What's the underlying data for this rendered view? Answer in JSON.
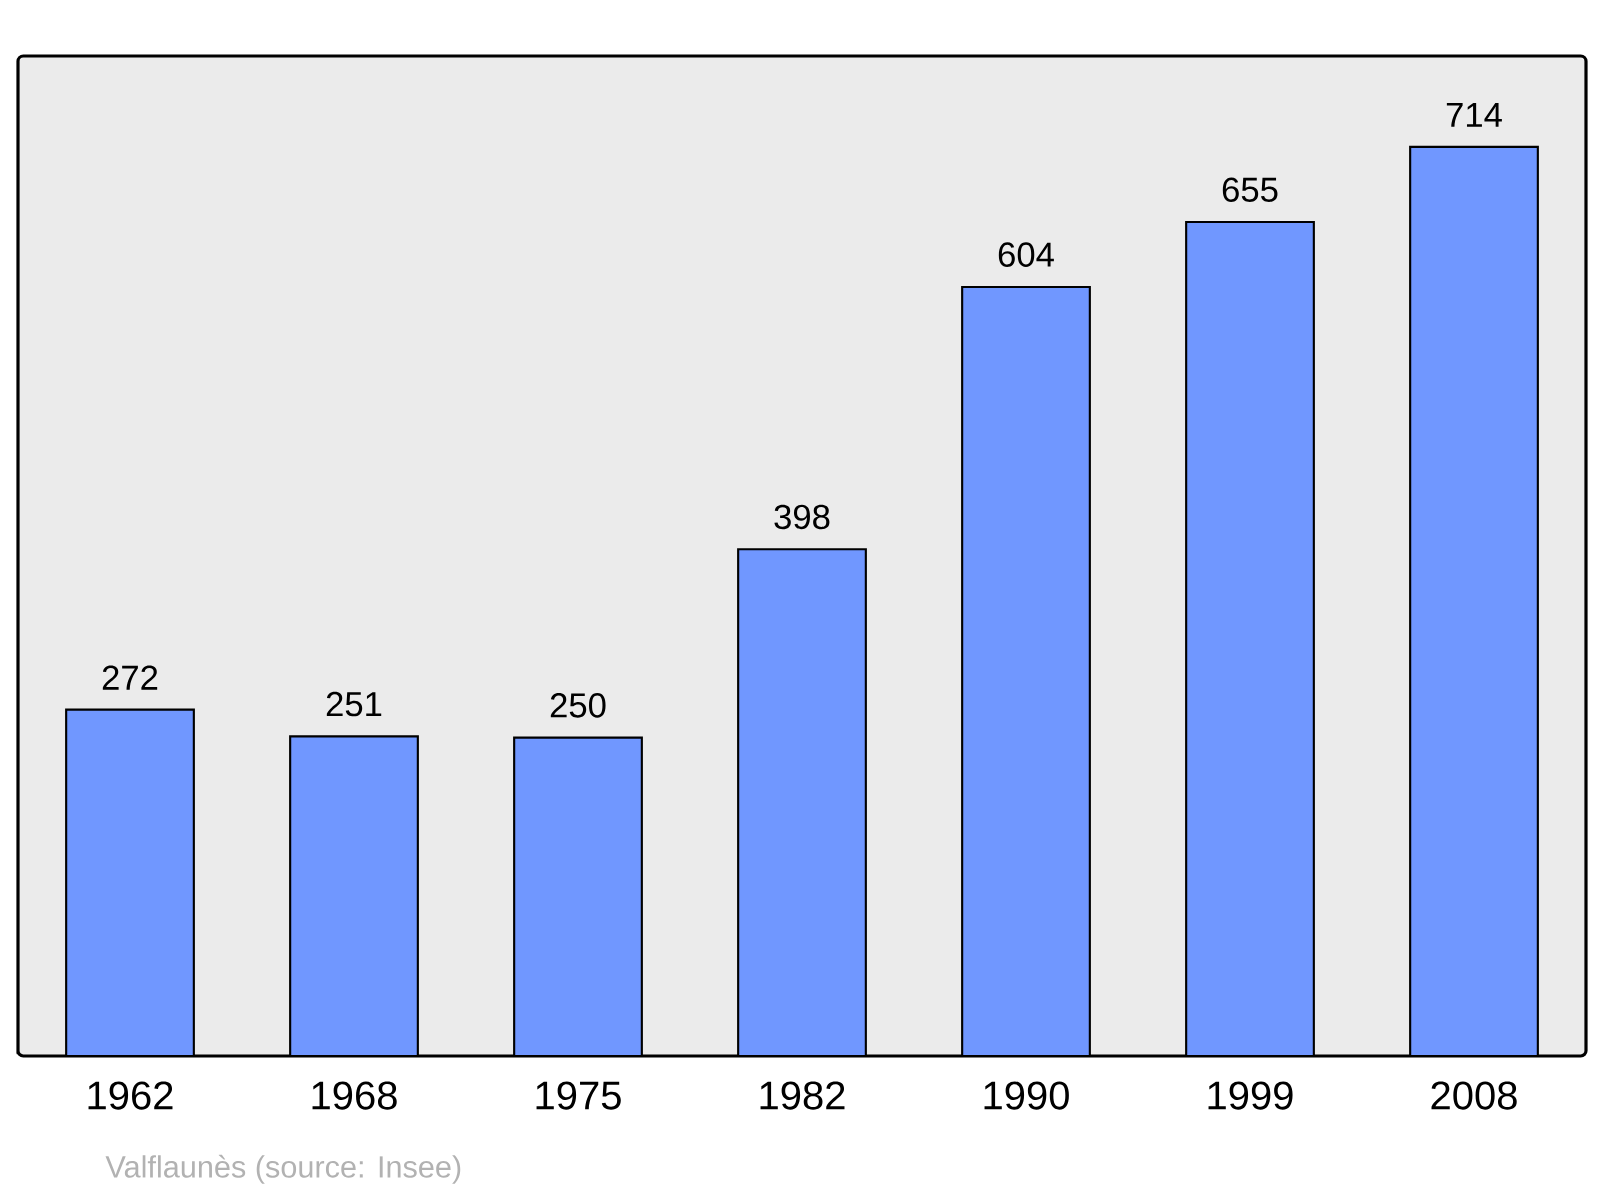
{
  "chart_data": {
    "type": "bar",
    "categories": [
      "1962",
      "1968",
      "1975",
      "1982",
      "1990",
      "1999",
      "2008"
    ],
    "values": [
      272,
      251,
      250,
      398,
      604,
      655,
      714
    ],
    "color": "#7097ff",
    "data_labels": true,
    "grid": false,
    "annotations": [
      "Valflaunès    (source: Insee)"
    ]
  }
}
